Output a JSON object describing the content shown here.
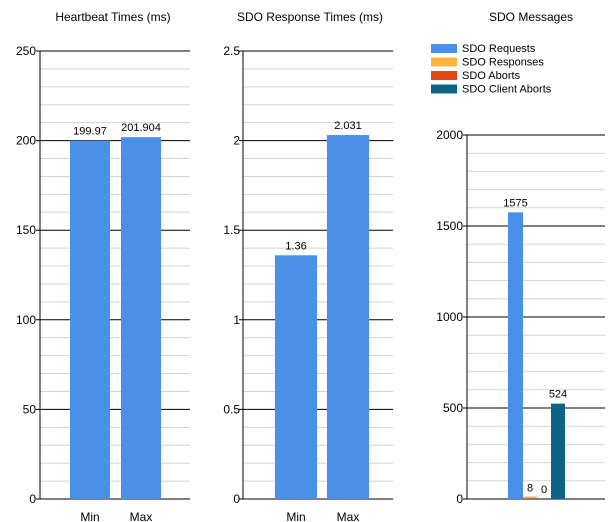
{
  "chart_data": [
    {
      "type": "bar",
      "title": "Heartbeat Times (ms)",
      "categories": [
        "Min",
        "Max"
      ],
      "values": [
        199.97,
        201.904
      ],
      "data_labels": [
        "199.97",
        "201.904"
      ],
      "ylim": [
        0,
        250
      ],
      "major_ticks": [
        0,
        50,
        100,
        150,
        200,
        250
      ],
      "minor_step": 10,
      "grid": true,
      "colors": [
        "#4a90e8"
      ]
    },
    {
      "type": "bar",
      "title": "SDO Response Times (ms)",
      "categories": [
        "Min",
        "Max"
      ],
      "values": [
        1.36,
        2.031
      ],
      "data_labels": [
        "1.36",
        "2.031"
      ],
      "ylim": [
        0,
        2.5
      ],
      "major_ticks": [
        0,
        0.5,
        1,
        1.5,
        2,
        2.5
      ],
      "minor_step": 0.1,
      "grid": true,
      "colors": [
        "#4a90e8"
      ]
    },
    {
      "type": "bar",
      "title": "SDO Messages",
      "categories": [
        ""
      ],
      "series": [
        {
          "name": "SDO Requests",
          "values": [
            1575
          ],
          "data_label": "1575",
          "color": "#4a90e8"
        },
        {
          "name": "SDO Responses",
          "values": [
            8
          ],
          "data_label": "8",
          "color": "#ffb43c"
        },
        {
          "name": "SDO Aborts",
          "values": [
            0
          ],
          "data_label": "0",
          "color": "#e04a17"
        },
        {
          "name": "SDO Client Aborts",
          "values": [
            524
          ],
          "data_label": "524",
          "color": "#0d6487"
        }
      ],
      "ylim": [
        0,
        2000
      ],
      "major_ticks": [
        0,
        500,
        1000,
        1500,
        2000
      ],
      "minor_step": 100,
      "grid": true,
      "legend": "top"
    }
  ]
}
